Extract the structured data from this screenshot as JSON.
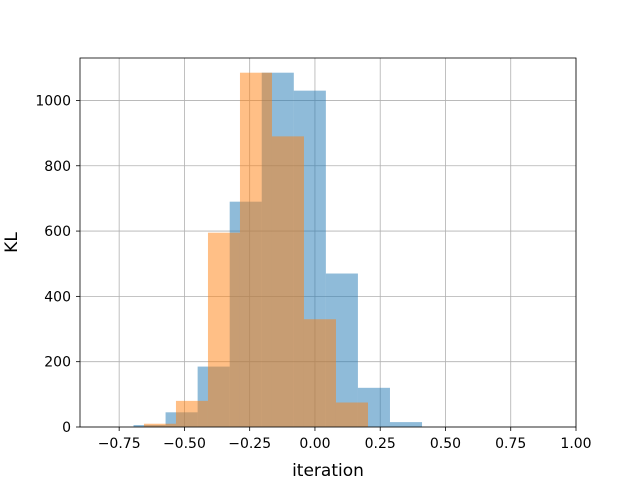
{
  "chart_data": {
    "type": "bar",
    "title": "",
    "xlabel": "iteration",
    "ylabel": "KL",
    "xlim": [
      -0.9,
      1.0
    ],
    "ylim": [
      0,
      1130
    ],
    "x_ticks": [
      -0.75,
      -0.5,
      -0.25,
      0.0,
      0.25,
      0.5,
      0.75,
      1.0
    ],
    "x_tick_labels": [
      "−0.75",
      "−0.50",
      "−0.25",
      "0.00",
      "0.25",
      "0.50",
      "0.75",
      "1.00"
    ],
    "y_ticks": [
      0,
      200,
      400,
      600,
      800,
      1000
    ],
    "y_tick_labels": [
      "0",
      "200",
      "400",
      "600",
      "800",
      "1000"
    ],
    "grid": true,
    "legend": "none",
    "series": [
      {
        "color": "#1f77b4",
        "alpha": 0.5,
        "bin_start": -0.695,
        "bin_width": 0.1228,
        "values": [
          6,
          45,
          185,
          690,
          1085,
          1030,
          470,
          120,
          15
        ]
      },
      {
        "color": "#ff7f0e",
        "alpha": 0.5,
        "bin_start": -0.655,
        "bin_width": 0.1226,
        "values": [
          10,
          80,
          595,
          1085,
          890,
          330,
          75,
          0,
          0
        ]
      }
    ]
  }
}
